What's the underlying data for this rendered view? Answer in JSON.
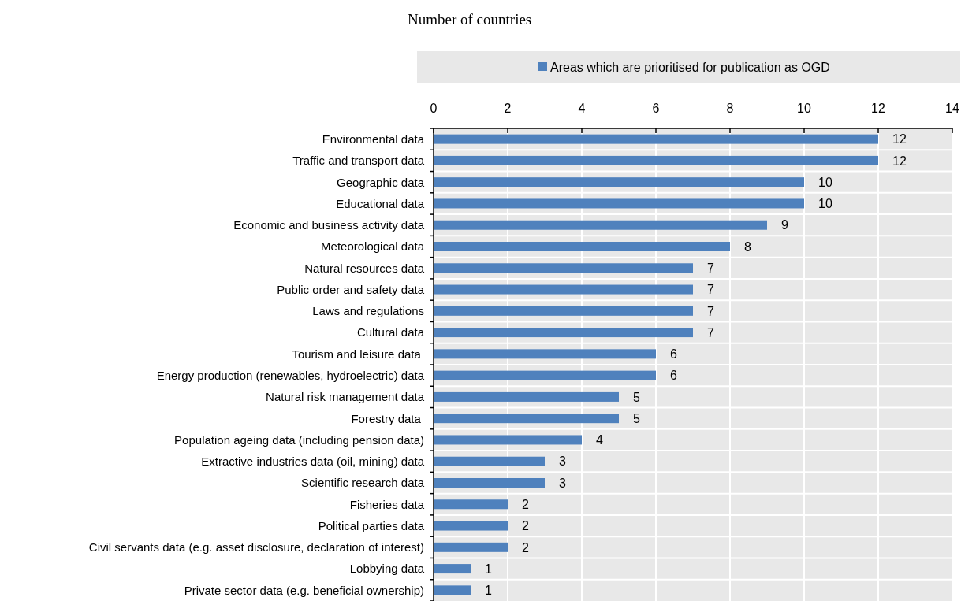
{
  "chart_data": {
    "type": "bar",
    "orientation": "horizontal",
    "title": "Number of countries",
    "categories": [
      "Environmental data",
      "Traffic and transport data",
      "Geographic data",
      "Educational data",
      "Economic and business activity data",
      "Meteorological data",
      "Natural resources data",
      "Public order and safety data",
      "Laws and regulations",
      "Cultural data",
      "Tourism and leisure data ",
      "Energy production (renewables, hydroelectric) data",
      "Natural risk management data",
      "Forestry data ",
      "Population ageing data (including pension data)",
      "Extractive industries data (oil, mining) data",
      "Scientific research data",
      "Fisheries data",
      "Political parties data",
      "Civil servants data (e.g. asset disclosure, declaration of interest)",
      "Lobbying data",
      "Private sector data (e.g. beneficial ownership)"
    ],
    "series": [
      {
        "name": "Areas which are prioritised for publication as OGD",
        "color": "#4f81bd",
        "values": [
          12,
          12,
          10,
          10,
          9,
          8,
          7,
          7,
          7,
          7,
          6,
          6,
          5,
          5,
          4,
          3,
          3,
          2,
          2,
          2,
          1,
          1
        ]
      }
    ],
    "xlim": [
      0,
      14
    ],
    "xticks": [
      0,
      2,
      4,
      6,
      8,
      10,
      12,
      14
    ],
    "grid": true,
    "legend": "top",
    "data_labels": true
  }
}
